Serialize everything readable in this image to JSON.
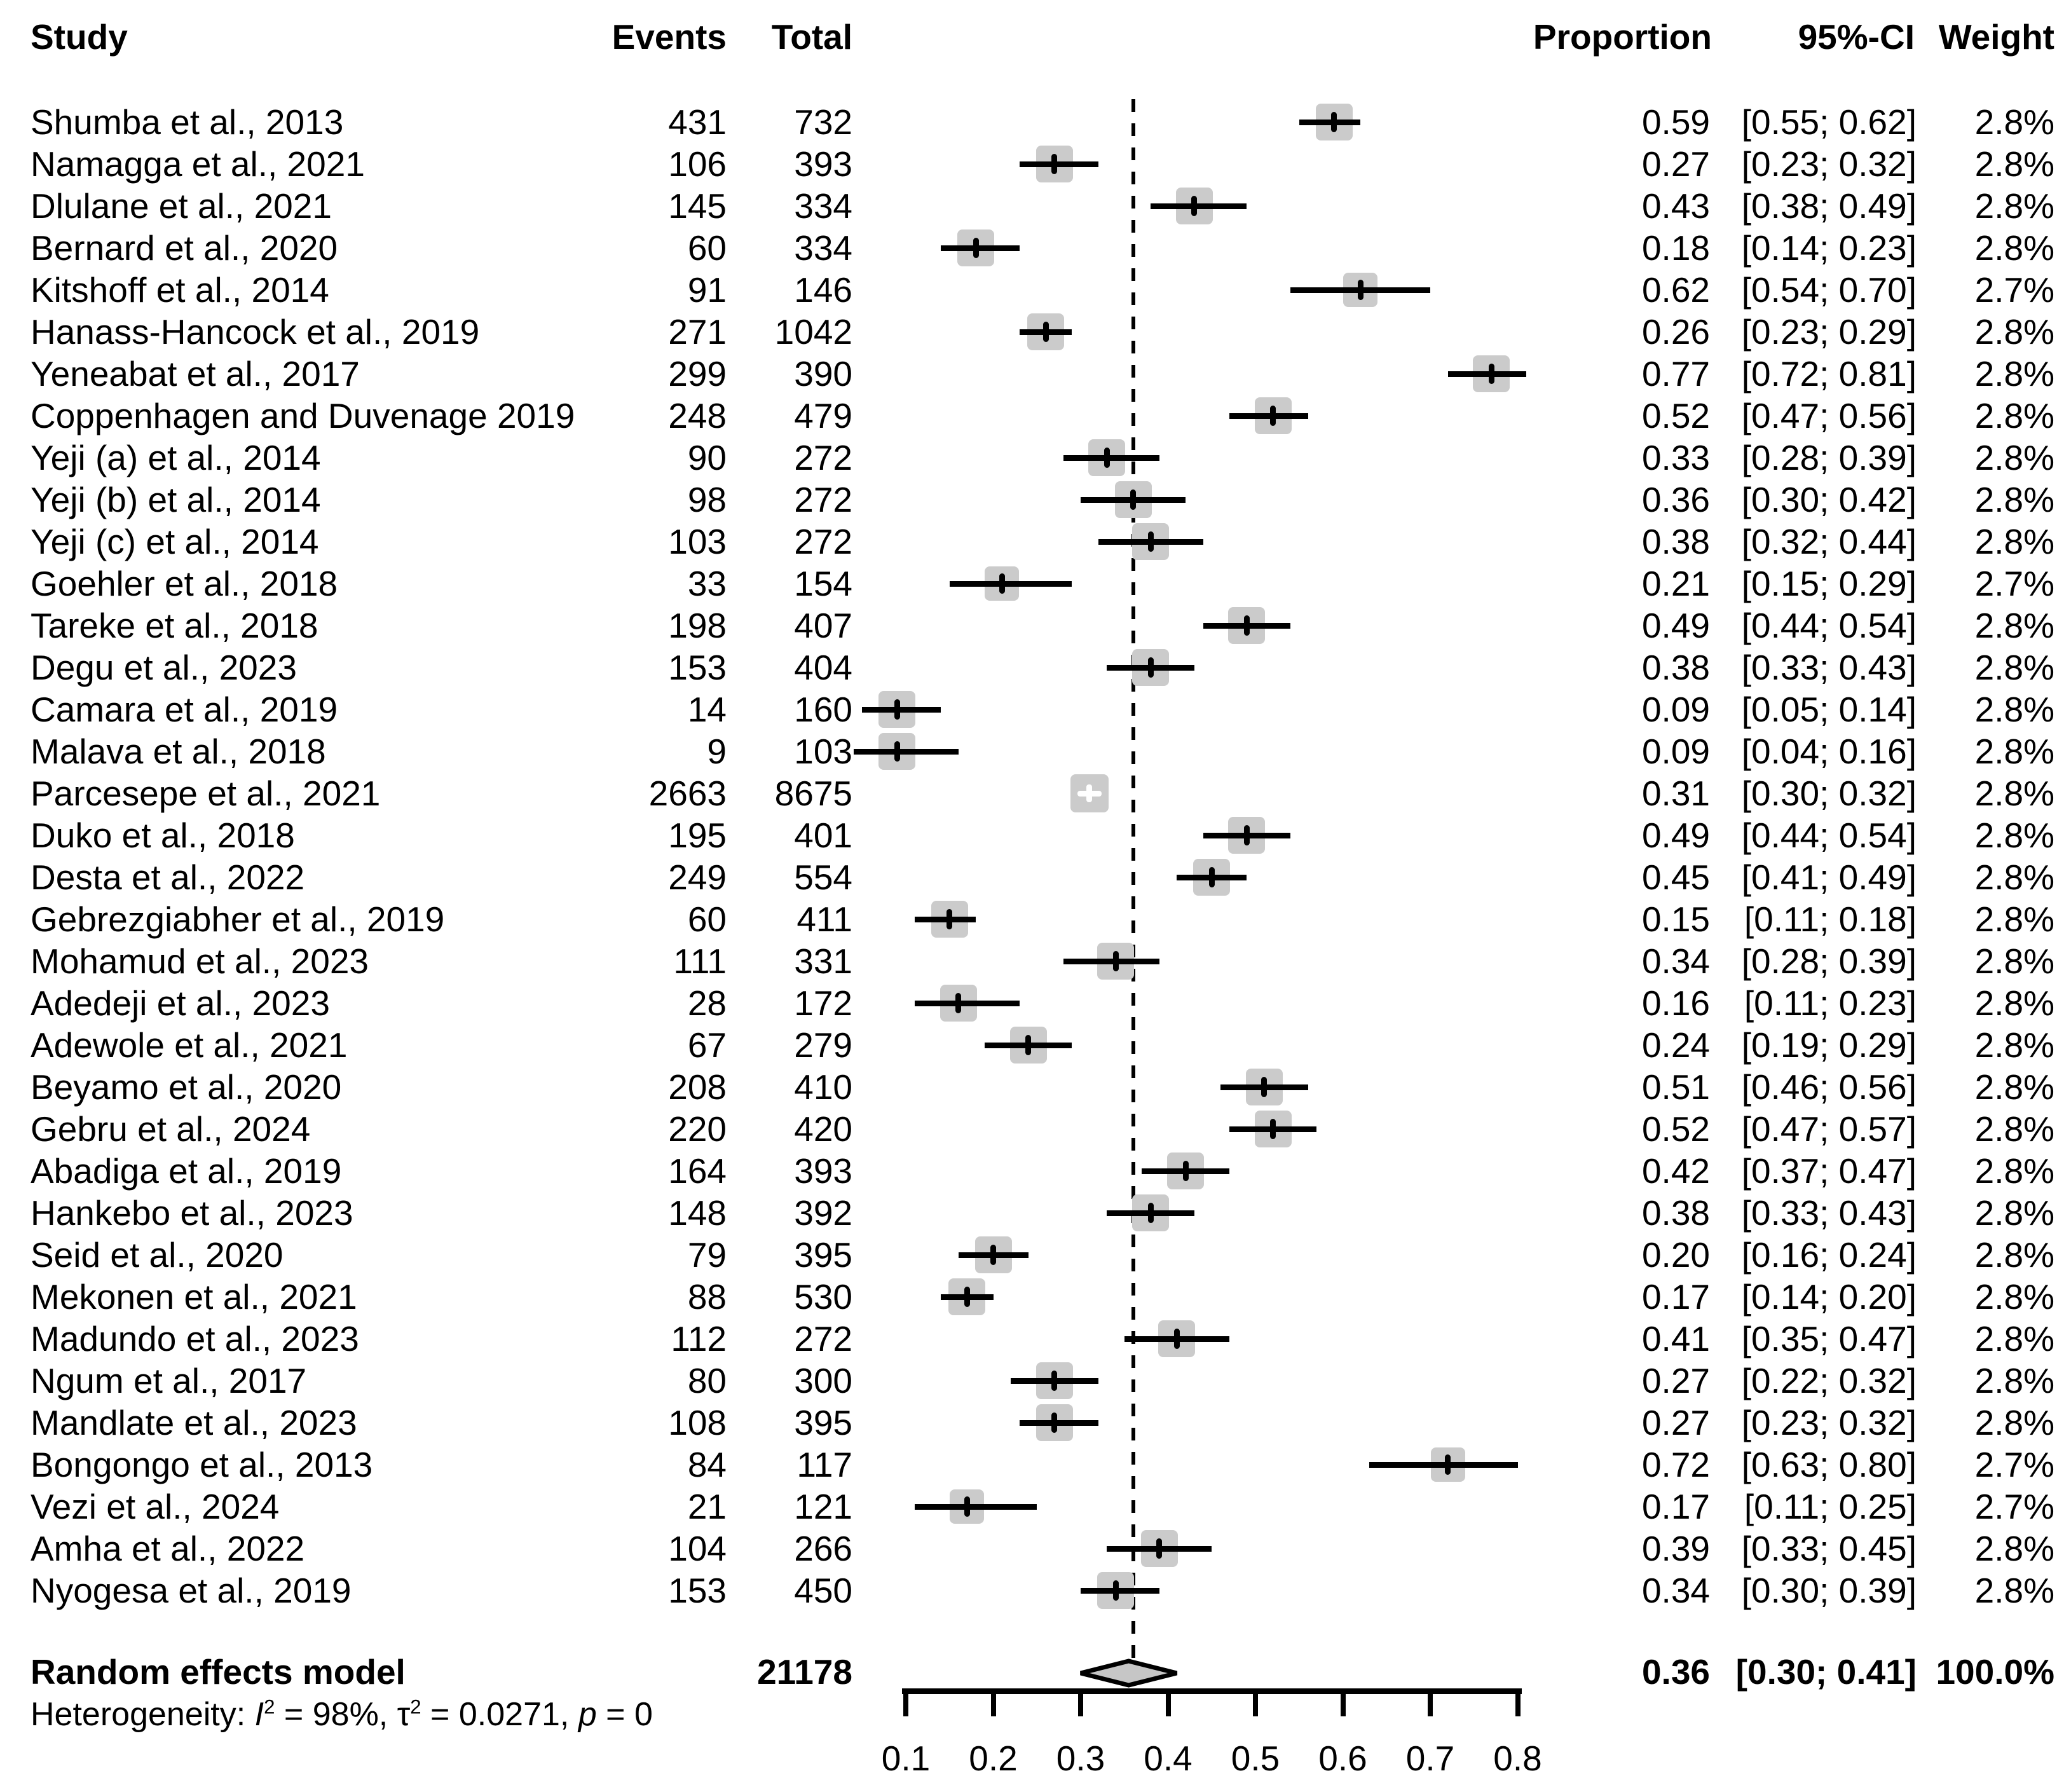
{
  "chart_data": {
    "type": "scatter",
    "variant": "forest-plot-meta-analysis",
    "title": "",
    "columns": {
      "study": "Study",
      "events": "Events",
      "total": "Total",
      "proportion": "Proportion",
      "ci": "95%-CI",
      "weight": "Weight"
    },
    "studies": [
      {
        "study": "Shumba et al., 2013",
        "events": 431,
        "total": 732,
        "proportion": "0.59",
        "ci": [
          0.55,
          0.62
        ],
        "ci_text": "[0.55; 0.62]",
        "weight": "2.8%"
      },
      {
        "study": "Namagga et al., 2021",
        "events": 106,
        "total": 393,
        "proportion": "0.27",
        "ci": [
          0.23,
          0.32
        ],
        "ci_text": "[0.23; 0.32]",
        "weight": "2.8%"
      },
      {
        "study": "Dlulane et al., 2021",
        "events": 145,
        "total": 334,
        "proportion": "0.43",
        "ci": [
          0.38,
          0.49
        ],
        "ci_text": "[0.38; 0.49]",
        "weight": "2.8%"
      },
      {
        "study": "Bernard et al., 2020",
        "events": 60,
        "total": 334,
        "proportion": "0.18",
        "ci": [
          0.14,
          0.23
        ],
        "ci_text": "[0.14; 0.23]",
        "weight": "2.8%"
      },
      {
        "study": "Kitshoff et al., 2014",
        "events": 91,
        "total": 146,
        "proportion": "0.62",
        "ci": [
          0.54,
          0.7
        ],
        "ci_text": "[0.54; 0.70]",
        "weight": "2.7%"
      },
      {
        "study": "Hanass-Hancock et al., 2019",
        "events": 271,
        "total": 1042,
        "proportion": "0.26",
        "ci": [
          0.23,
          0.29
        ],
        "ci_text": "[0.23; 0.29]",
        "weight": "2.8%"
      },
      {
        "study": "Yeneabat et al., 2017",
        "events": 299,
        "total": 390,
        "proportion": "0.77",
        "ci": [
          0.72,
          0.81
        ],
        "ci_text": "[0.72; 0.81]",
        "weight": "2.8%"
      },
      {
        "study": "Coppenhagen and Duvenage 2019",
        "events": 248,
        "total": 479,
        "proportion": "0.52",
        "ci": [
          0.47,
          0.56
        ],
        "ci_text": "[0.47; 0.56]",
        "weight": "2.8%"
      },
      {
        "study": "Yeji (a) et al., 2014",
        "events": 90,
        "total": 272,
        "proportion": "0.33",
        "ci": [
          0.28,
          0.39
        ],
        "ci_text": "[0.28; 0.39]",
        "weight": "2.8%"
      },
      {
        "study": "Yeji (b) et al., 2014",
        "events": 98,
        "total": 272,
        "proportion": "0.36",
        "ci": [
          0.3,
          0.42
        ],
        "ci_text": "[0.30; 0.42]",
        "weight": "2.8%"
      },
      {
        "study": "Yeji (c) et al., 2014",
        "events": 103,
        "total": 272,
        "proportion": "0.38",
        "ci": [
          0.32,
          0.44
        ],
        "ci_text": "[0.32; 0.44]",
        "weight": "2.8%"
      },
      {
        "study": "Goehler et al., 2018",
        "events": 33,
        "total": 154,
        "proportion": "0.21",
        "ci": [
          0.15,
          0.29
        ],
        "ci_text": "[0.15; 0.29]",
        "weight": "2.7%"
      },
      {
        "study": "Tareke et al., 2018",
        "events": 198,
        "total": 407,
        "proportion": "0.49",
        "ci": [
          0.44,
          0.54
        ],
        "ci_text": "[0.44; 0.54]",
        "weight": "2.8%"
      },
      {
        "study": "Degu et al., 2023",
        "events": 153,
        "total": 404,
        "proportion": "0.38",
        "ci": [
          0.33,
          0.43
        ],
        "ci_text": "[0.33; 0.43]",
        "weight": "2.8%"
      },
      {
        "study": "Camara et al., 2019",
        "events": 14,
        "total": 160,
        "proportion": "0.09",
        "ci": [
          0.05,
          0.14
        ],
        "ci_text": "[0.05; 0.14]",
        "weight": "2.8%"
      },
      {
        "study": "Malava et al., 2018",
        "events": 9,
        "total": 103,
        "proportion": "0.09",
        "ci": [
          0.04,
          0.16
        ],
        "ci_text": "[0.04; 0.16]",
        "weight": "2.8%"
      },
      {
        "study": "Parcesepe et al., 2021",
        "events": 2663,
        "total": 8675,
        "proportion": "0.31",
        "ci": [
          0.3,
          0.32
        ],
        "ci_text": "[0.30; 0.32]",
        "weight": "2.8%"
      },
      {
        "study": "Duko et al., 2018",
        "events": 195,
        "total": 401,
        "proportion": "0.49",
        "ci": [
          0.44,
          0.54
        ],
        "ci_text": "[0.44; 0.54]",
        "weight": "2.8%"
      },
      {
        "study": "Desta et al., 2022",
        "events": 249,
        "total": 554,
        "proportion": "0.45",
        "ci": [
          0.41,
          0.49
        ],
        "ci_text": "[0.41; 0.49]",
        "weight": "2.8%"
      },
      {
        "study": "Gebrezgiabher et al., 2019",
        "events": 60,
        "total": 411,
        "proportion": "0.15",
        "ci": [
          0.11,
          0.18
        ],
        "ci_text": "[0.11; 0.18]",
        "weight": "2.8%"
      },
      {
        "study": "Mohamud et al., 2023",
        "events": 111,
        "total": 331,
        "proportion": "0.34",
        "ci": [
          0.28,
          0.39
        ],
        "ci_text": "[0.28; 0.39]",
        "weight": "2.8%"
      },
      {
        "study": "Adedeji et al., 2023",
        "events": 28,
        "total": 172,
        "proportion": "0.16",
        "ci": [
          0.11,
          0.23
        ],
        "ci_text": "[0.11; 0.23]",
        "weight": "2.8%"
      },
      {
        "study": "Adewole et al., 2021",
        "events": 67,
        "total": 279,
        "proportion": "0.24",
        "ci": [
          0.19,
          0.29
        ],
        "ci_text": "[0.19; 0.29]",
        "weight": "2.8%"
      },
      {
        "study": "Beyamo et al., 2020",
        "events": 208,
        "total": 410,
        "proportion": "0.51",
        "ci": [
          0.46,
          0.56
        ],
        "ci_text": "[0.46; 0.56]",
        "weight": "2.8%"
      },
      {
        "study": "Gebru et al., 2024",
        "events": 220,
        "total": 420,
        "proportion": "0.52",
        "ci": [
          0.47,
          0.57
        ],
        "ci_text": "[0.47; 0.57]",
        "weight": "2.8%"
      },
      {
        "study": "Abadiga et al., 2019",
        "events": 164,
        "total": 393,
        "proportion": "0.42",
        "ci": [
          0.37,
          0.47
        ],
        "ci_text": "[0.37; 0.47]",
        "weight": "2.8%"
      },
      {
        "study": "Hankebo et al., 2023",
        "events": 148,
        "total": 392,
        "proportion": "0.38",
        "ci": [
          0.33,
          0.43
        ],
        "ci_text": "[0.33; 0.43]",
        "weight": "2.8%"
      },
      {
        "study": "Seid et al., 2020",
        "events": 79,
        "total": 395,
        "proportion": "0.20",
        "ci": [
          0.16,
          0.24
        ],
        "ci_text": "[0.16; 0.24]",
        "weight": "2.8%"
      },
      {
        "study": "Mekonen et al., 2021",
        "events": 88,
        "total": 530,
        "proportion": "0.17",
        "ci": [
          0.14,
          0.2
        ],
        "ci_text": "[0.14; 0.20]",
        "weight": "2.8%"
      },
      {
        "study": "Madundo et al., 2023",
        "events": 112,
        "total": 272,
        "proportion": "0.41",
        "ci": [
          0.35,
          0.47
        ],
        "ci_text": "[0.35; 0.47]",
        "weight": "2.8%"
      },
      {
        "study": "Ngum et al., 2017",
        "events": 80,
        "total": 300,
        "proportion": "0.27",
        "ci": [
          0.22,
          0.32
        ],
        "ci_text": "[0.22; 0.32]",
        "weight": "2.8%"
      },
      {
        "study": "Mandlate et al., 2023",
        "events": 108,
        "total": 395,
        "proportion": "0.27",
        "ci": [
          0.23,
          0.32
        ],
        "ci_text": "[0.23; 0.32]",
        "weight": "2.8%"
      },
      {
        "study": "Bongongo et al., 2013",
        "events": 84,
        "total": 117,
        "proportion": "0.72",
        "ci": [
          0.63,
          0.8
        ],
        "ci_text": "[0.63; 0.80]",
        "weight": "2.7%"
      },
      {
        "study": "Vezi et al., 2024",
        "events": 21,
        "total": 121,
        "proportion": "0.17",
        "ci": [
          0.11,
          0.25
        ],
        "ci_text": "[0.11; 0.25]",
        "weight": "2.7%"
      },
      {
        "study": "Amha et al., 2022",
        "events": 104,
        "total": 266,
        "proportion": "0.39",
        "ci": [
          0.33,
          0.45
        ],
        "ci_text": "[0.33; 0.45]",
        "weight": "2.8%"
      },
      {
        "study": "Nyogesa et al., 2019",
        "events": 153,
        "total": 450,
        "proportion": "0.34",
        "ci": [
          0.3,
          0.39
        ],
        "ci_text": "[0.30; 0.39]",
        "weight": "2.8%"
      }
    ],
    "summary": {
      "label": "Random effects model",
      "total": "21178",
      "proportion": "0.36",
      "ci": [
        0.3,
        0.41
      ],
      "ci_text": "[0.30; 0.41]",
      "weight": "100.0%"
    },
    "heterogeneity": {
      "prefix": "Heterogeneity: ",
      "i_label": "I",
      "sup2": "2",
      "i_value": " = 98%, ",
      "tau_label": "τ",
      "tau_value": " = 0.0271, ",
      "p_label": "p",
      "p_value": " = 0"
    },
    "x_axis": {
      "ticks": [
        "0.1",
        "0.2",
        "0.3",
        "0.4",
        "0.5",
        "0.6",
        "0.7",
        "0.8"
      ],
      "tick_values": [
        0.1,
        0.2,
        0.3,
        0.4,
        0.5,
        0.6,
        0.7,
        0.8
      ],
      "range": [
        0.04,
        0.81
      ],
      "reference_line": 0.36,
      "grid": false
    },
    "colors": {
      "marker_square": "#cbcbcb",
      "diamond_fill": "#c6c6c6",
      "line": "#000000",
      "background": "#ffffff"
    }
  }
}
